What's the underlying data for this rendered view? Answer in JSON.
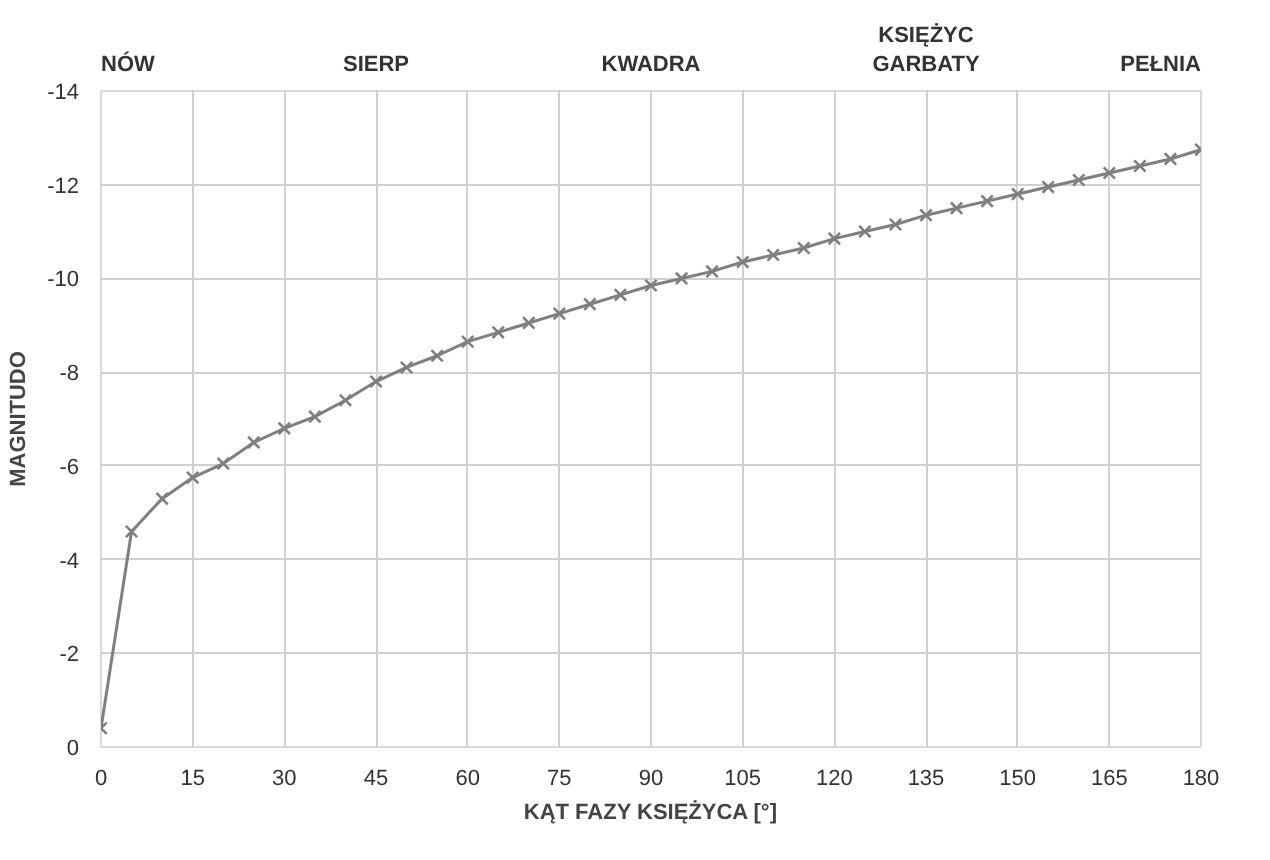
{
  "chart_data": {
    "type": "line",
    "xlabel": "KĄT FAZY KSIĘŻYCA [°]",
    "ylabel": "MAGNITUDO",
    "x": [
      0,
      5,
      10,
      15,
      20,
      25,
      30,
      35,
      40,
      45,
      50,
      55,
      60,
      65,
      70,
      75,
      80,
      85,
      90,
      95,
      100,
      105,
      110,
      115,
      120,
      125,
      130,
      135,
      140,
      145,
      150,
      155,
      160,
      165,
      170,
      175,
      180
    ],
    "series": [
      {
        "color": "#7f7f7f",
        "values": [
          -0.4,
          -4.6,
          -5.3,
          -5.75,
          -6.05,
          -6.5,
          -6.8,
          -7.05,
          -7.4,
          -7.8,
          -8.1,
          -8.35,
          -8.65,
          -8.85,
          -9.05,
          -9.25,
          -9.45,
          -9.65,
          -9.85,
          -10.0,
          -10.15,
          -10.35,
          -10.5,
          -10.65,
          -10.85,
          -11.0,
          -11.15,
          -11.35,
          -11.5,
          -11.65,
          -11.8,
          -11.95,
          -12.1,
          -12.25,
          -12.4,
          -12.55,
          -12.75
        ]
      }
    ],
    "xlim": [
      0,
      180
    ],
    "xticks": [
      0,
      15,
      30,
      45,
      60,
      75,
      90,
      105,
      120,
      135,
      150,
      165,
      180
    ],
    "ylim": [
      0,
      -14
    ],
    "yticks": [
      -14,
      -12,
      -10,
      -8,
      -6,
      -4,
      -2,
      0
    ],
    "annotations": [
      "NÓW",
      "SIERP",
      "KWADRA",
      "KSIĘŻYC\nGARBATY",
      "PEŁNIA"
    ],
    "grid": true,
    "marker": "cross",
    "line_style": "solid"
  }
}
